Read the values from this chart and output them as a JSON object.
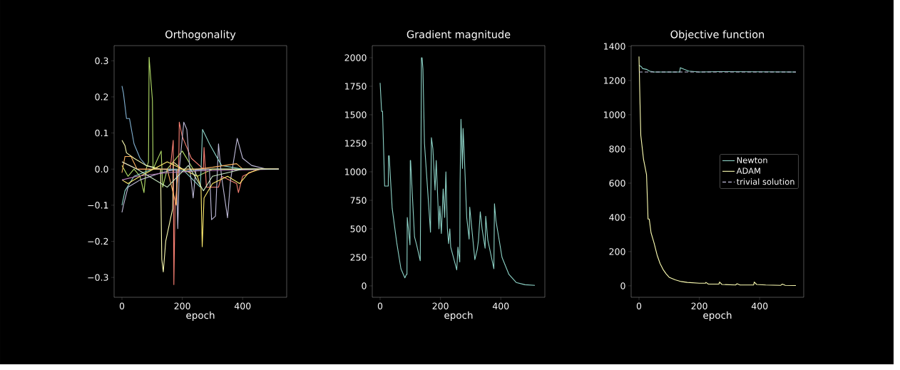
{
  "chart_data": [
    {
      "type": "line",
      "title": "Orthogonality",
      "xlabel": "epoch",
      "xlim": [
        -26,
        546
      ],
      "xticks": [
        0,
        200,
        400
      ],
      "ylim": [
        -0.355,
        0.342
      ],
      "yticks": [
        {
          "value": -0.3,
          "label": "−0.3"
        },
        {
          "value": -0.2,
          "label": "−0.2"
        },
        {
          "value": -0.1,
          "label": "−0.1"
        },
        {
          "value": 0,
          "label": "0.0"
        },
        0.1,
        0.2,
        0.3
      ],
      "grid": false,
      "legend": false,
      "line_style": "solid",
      "series": [
        {
          "color": "#81b1d2",
          "x": [
            0,
            5,
            15,
            25,
            40,
            60,
            80,
            120,
            200,
            300,
            520
          ],
          "values": [
            0.23,
            0.21,
            0.14,
            0.14,
            0.07,
            0.03,
            0.01,
            0.0,
            -0.005,
            0.0,
            0.0
          ]
        },
        {
          "color": "#b3de69",
          "x": [
            0,
            20,
            40,
            60,
            73,
            80,
            88,
            90,
            101,
            103,
            130,
            135,
            150,
            200,
            250,
            300,
            520
          ],
          "values": [
            0.01,
            -0.02,
            0.0,
            -0.02,
            -0.065,
            0.0,
            0.02,
            0.31,
            0.19,
            0.0,
            0.05,
            -0.05,
            0.0,
            0.05,
            -0.02,
            0.0,
            0.0
          ]
        },
        {
          "color": "#feffb3",
          "x": [
            0,
            10,
            15,
            40,
            80,
            128,
            132,
            137,
            145,
            168,
            170,
            200,
            300,
            520
          ],
          "values": [
            0.08,
            0.065,
            0.045,
            0.03,
            0.01,
            0.0,
            -0.25,
            -0.285,
            -0.2,
            -0.11,
            0.02,
            0.0,
            0.0,
            0.0
          ]
        },
        {
          "color": "#fa8174",
          "x": [
            0,
            50,
            160,
            170,
            172,
            176,
            188,
            190,
            200,
            230,
            270,
            272,
            280,
            320,
            330,
            380,
            386,
            400,
            450,
            520
          ],
          "values": [
            0.02,
            0.0,
            0.0,
            0.08,
            -0.32,
            -0.1,
            0.0,
            0.13,
            0.09,
            0.03,
            0.0,
            0.06,
            -0.05,
            -0.05,
            -0.02,
            -0.04,
            -0.065,
            -0.02,
            0.0,
            0.0
          ]
        },
        {
          "color": "#bfbbd9",
          "x": [
            0,
            5,
            20,
            60,
            130,
            180,
            185,
            190,
            205,
            215,
            225,
            236,
            245,
            290,
            297,
            310,
            320,
            330,
            350,
            360,
            382,
            400,
            430,
            480,
            520
          ],
          "values": [
            -0.12,
            -0.1,
            -0.05,
            -0.03,
            -0.01,
            0.0,
            -0.165,
            0.0,
            0.13,
            0.11,
            0.0,
            -0.08,
            0.0,
            0.0,
            -0.14,
            -0.13,
            0.07,
            -0.02,
            -0.135,
            -0.03,
            0.085,
            0.03,
            0.01,
            0.0,
            0.0
          ]
        },
        {
          "color": "#8dd3c7",
          "x": [
            0,
            10,
            40,
            100,
            200,
            260,
            267,
            290,
            330,
            400,
            520
          ],
          "values": [
            -0.1,
            -0.06,
            -0.02,
            0.0,
            0.0,
            -0.05,
            0.11,
            0.07,
            0.01,
            0.0,
            0.0
          ]
        },
        {
          "color": "#fdb462",
          "x": [
            0,
            10,
            30,
            50,
            150,
            180,
            185,
            250,
            300,
            380,
            400,
            520
          ],
          "values": [
            -0.01,
            0.035,
            0.035,
            0.0,
            0.0,
            -0.1,
            0.0,
            0.0,
            0.005,
            0.015,
            0.0,
            0.0
          ]
        },
        {
          "color": "#ffed6f",
          "x": [
            0,
            20,
            60,
            150,
            250,
            262,
            266,
            272,
            300,
            350,
            390,
            420,
            460,
            520
          ],
          "values": [
            -0.03,
            -0.04,
            -0.02,
            0.02,
            -0.02,
            -0.05,
            -0.215,
            -0.08,
            -0.04,
            -0.02,
            -0.04,
            -0.01,
            0.0,
            0.0
          ]
        },
        {
          "color": "#bc82bd",
          "x": [
            0,
            50,
            150,
            250,
            520
          ],
          "values": [
            -0.03,
            -0.02,
            -0.01,
            -0.005,
            0.0
          ]
        },
        {
          "color": "#ccebc4",
          "x": [
            0,
            50,
            150,
            220,
            270,
            300,
            400,
            520
          ],
          "values": [
            0.02,
            0.0,
            -0.05,
            0.01,
            -0.06,
            -0.02,
            0.0,
            0.0
          ]
        }
      ]
    },
    {
      "type": "line",
      "title": "Gradient magnitude",
      "xlabel": "epoch",
      "xlim": [
        -26,
        546
      ],
      "xticks": [
        0,
        200,
        400
      ],
      "ylim": [
        -100,
        2106
      ],
      "yticks": [
        0,
        250,
        500,
        750,
        1000,
        1250,
        1500,
        1750,
        2000
      ],
      "grid": false,
      "legend": false,
      "line_style": "solid",
      "series": [
        {
          "color": "#8dd3c7",
          "x": [
            0,
            5,
            8,
            15,
            27,
            28,
            30,
            40,
            55,
            69,
            82,
            87,
            89,
            90,
            99,
            100,
            101,
            114,
            121,
            133,
            135,
            137,
            139,
            142,
            147,
            167,
            170,
            175,
            182,
            186,
            192,
            195,
            198,
            203,
            209,
            214,
            218,
            223,
            227,
            231,
            234,
            254,
            258,
            264,
            265,
            268,
            273,
            275,
            279,
            287,
            295,
            297,
            304,
            314,
            322,
            326,
            332,
            338,
            348,
            350,
            357,
            377,
            379,
            384,
            396,
            404,
            427,
            451,
            480,
            513
          ],
          "values": [
            1780,
            1530,
            1530,
            875,
            875,
            1140,
            1140,
            680,
            380,
            150,
            70,
            100,
            100,
            600,
            360,
            1100,
            1100,
            430,
            360,
            220,
            960,
            2000,
            2000,
            1900,
            1250,
            470,
            1300,
            1200,
            840,
            1100,
            700,
            500,
            700,
            460,
            850,
            600,
            1000,
            500,
            370,
            500,
            340,
            140,
            340,
            210,
            900,
            1460,
            1030,
            1380,
            1150,
            600,
            410,
            690,
            500,
            230,
            320,
            400,
            650,
            500,
            330,
            610,
            400,
            150,
            720,
            570,
            380,
            250,
            100,
            30,
            10,
            5
          ]
        }
      ]
    },
    {
      "type": "line",
      "xlabel": "epoch",
      "title": "Objective function",
      "xlim": [
        -26,
        546
      ],
      "xticks": [
        0,
        200,
        400
      ],
      "ylim": [
        -67,
        1404
      ],
      "yticks": [
        0,
        200,
        400,
        600,
        800,
        1000,
        1200,
        1400
      ],
      "grid": false,
      "legend": "right",
      "line_style": "solid",
      "series": [
        {
          "name": "Newton",
          "color": "#8dd3c7",
          "x": [
            0,
            8,
            12,
            25,
            35,
            50,
            135,
            137,
            150,
            165,
            200,
            265,
            520
          ],
          "values": [
            1290,
            1280,
            1270,
            1265,
            1255,
            1250,
            1250,
            1275,
            1265,
            1255,
            1250,
            1252,
            1250
          ]
        },
        {
          "name": "ADAM",
          "color": "#feffb3",
          "x": [
            0,
            3,
            6,
            15,
            25,
            28,
            30,
            34,
            40,
            50,
            60,
            70,
            80,
            90,
            100,
            120,
            140,
            160,
            200,
            220,
            222,
            230,
            265,
            267,
            275,
            320,
            325,
            335,
            380,
            382,
            390,
            420,
            470,
            475,
            485,
            520
          ],
          "values": [
            1340,
            1100,
            880,
            740,
            650,
            500,
            390,
            390,
            310,
            250,
            180,
            130,
            95,
            70,
            50,
            35,
            25,
            20,
            15,
            15,
            20,
            10,
            10,
            22,
            8,
            5,
            12,
            5,
            5,
            22,
            8,
            5,
            3,
            10,
            3,
            2
          ]
        },
        {
          "name": "trivial solution",
          "color": "#bfbbd9",
          "line_style": "dashed",
          "x": [
            0,
            520
          ],
          "values": [
            1250,
            1250
          ]
        }
      ]
    }
  ]
}
